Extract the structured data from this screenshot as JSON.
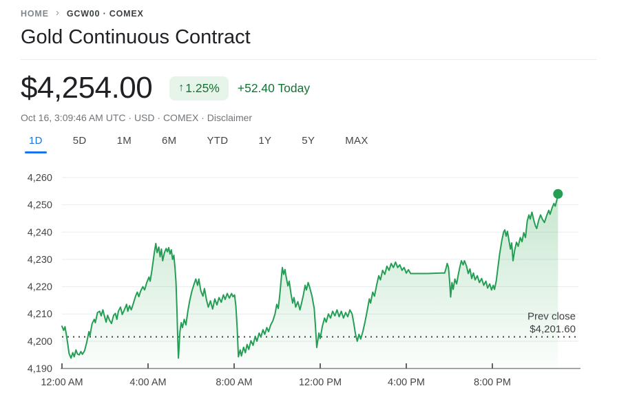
{
  "breadcrumb": {
    "home": "HOME",
    "symbol": "GCW00 · COMEX"
  },
  "header": {
    "title": "Gold Continuous Contract"
  },
  "quote": {
    "price": "$4,254.00",
    "arrow": "↑",
    "change_percent": "1.25%",
    "change_amount": "+52.40 Today",
    "meta": "Oct 16, 3:09:46 AM UTC · USD · COMEX · ",
    "disclaimer": "Disclaimer",
    "positive_color": "#137333",
    "badge_bg": "#e6f4ea"
  },
  "tabs": [
    {
      "label": "1D",
      "selected": true
    },
    {
      "label": "5D",
      "selected": false
    },
    {
      "label": "1M",
      "selected": false
    },
    {
      "label": "6M",
      "selected": false
    },
    {
      "label": "YTD",
      "selected": false
    },
    {
      "label": "1Y",
      "selected": false
    },
    {
      "label": "5Y",
      "selected": false
    },
    {
      "label": "MAX",
      "selected": false
    }
  ],
  "chart_data": {
    "type": "area",
    "title": "",
    "xlabel": "",
    "ylabel": "",
    "xlim_hours": [
      0,
      24
    ],
    "ylim": [
      4190,
      4260
    ],
    "grid": true,
    "line_color": "#249e55",
    "fill_top": "rgba(52,168,83,0.30)",
    "fill_bottom": "rgba(52,168,83,0.02)",
    "grid_color": "#e9ebee",
    "axis_color": "#80868b",
    "tick_color": "#5f6368",
    "dotted_color": "#3c4043",
    "y_ticks": [
      {
        "value": 4190,
        "label": "4,190"
      },
      {
        "value": 4200,
        "label": "4,200"
      },
      {
        "value": 4210,
        "label": "4,210"
      },
      {
        "value": 4220,
        "label": "4,220"
      },
      {
        "value": 4230,
        "label": "4,230"
      },
      {
        "value": 4240,
        "label": "4,240"
      },
      {
        "value": 4250,
        "label": "4,250"
      },
      {
        "value": 4260,
        "label": "4,260"
      }
    ],
    "x_ticks": [
      {
        "hour": 0,
        "label": "12:00 AM"
      },
      {
        "hour": 4,
        "label": "4:00 AM"
      },
      {
        "hour": 8,
        "label": "8:00 AM"
      },
      {
        "hour": 12,
        "label": "12:00 PM"
      },
      {
        "hour": 16,
        "label": "4:00 PM"
      },
      {
        "hour": 20,
        "label": "8:00 PM"
      }
    ],
    "prev_close": {
      "label": "Prev close",
      "display": "$4,201.60",
      "value": 4201.6
    },
    "last_point": {
      "hour": 23.05,
      "value": 4254
    },
    "points": [
      [
        0,
        4205.5
      ],
      [
        0.08,
        4204
      ],
      [
        0.14,
        4205.3
      ],
      [
        0.2,
        4202.5
      ],
      [
        0.27,
        4199
      ],
      [
        0.33,
        4195.5
      ],
      [
        0.42,
        4193.8
      ],
      [
        0.5,
        4195.8
      ],
      [
        0.57,
        4194.3
      ],
      [
        0.65,
        4196.8
      ],
      [
        0.72,
        4195.3
      ],
      [
        0.8,
        4195
      ],
      [
        0.88,
        4196.2
      ],
      [
        0.95,
        4195.2
      ],
      [
        1.05,
        4196.5
      ],
      [
        1.15,
        4199.5
      ],
      [
        1.25,
        4203.5
      ],
      [
        1.3,
        4202
      ],
      [
        1.4,
        4206.5
      ],
      [
        1.5,
        4208
      ],
      [
        1.55,
        4206.8
      ],
      [
        1.65,
        4210.5
      ],
      [
        1.75,
        4211
      ],
      [
        1.82,
        4209.3
      ],
      [
        1.9,
        4211.5
      ],
      [
        1.98,
        4209
      ],
      [
        2.05,
        4207
      ],
      [
        2.12,
        4209.5
      ],
      [
        2.2,
        4207.8
      ],
      [
        2.3,
        4206.5
      ],
      [
        2.4,
        4209.5
      ],
      [
        2.48,
        4210.2
      ],
      [
        2.55,
        4208
      ],
      [
        2.62,
        4211
      ],
      [
        2.72,
        4212.5
      ],
      [
        2.8,
        4209.8
      ],
      [
        2.9,
        4211.5
      ],
      [
        3,
        4213.5
      ],
      [
        3.06,
        4211
      ],
      [
        3.14,
        4213
      ],
      [
        3.22,
        4211.5
      ],
      [
        3.32,
        4214
      ],
      [
        3.42,
        4216.5
      ],
      [
        3.5,
        4218
      ],
      [
        3.57,
        4216.3
      ],
      [
        3.66,
        4218.5
      ],
      [
        3.76,
        4220
      ],
      [
        3.84,
        4218.8
      ],
      [
        3.94,
        4221.5
      ],
      [
        4.04,
        4223.5
      ],
      [
        4.1,
        4222
      ],
      [
        4.18,
        4226
      ],
      [
        4.24,
        4229.5
      ],
      [
        4.3,
        4233
      ],
      [
        4.36,
        4235.8
      ],
      [
        4.42,
        4232.5
      ],
      [
        4.5,
        4234.5
      ],
      [
        4.56,
        4231
      ],
      [
        4.62,
        4233.8
      ],
      [
        4.68,
        4229.5
      ],
      [
        4.76,
        4232.5
      ],
      [
        4.84,
        4234
      ],
      [
        4.9,
        4232.8
      ],
      [
        4.96,
        4234.3
      ],
      [
        5.02,
        4232
      ],
      [
        5.08,
        4233.5
      ],
      [
        5.14,
        4230
      ],
      [
        5.2,
        4231.5
      ],
      [
        5.26,
        4226
      ],
      [
        5.3,
        4221.5
      ],
      [
        5.34,
        4212
      ],
      [
        5.38,
        4201
      ],
      [
        5.41,
        4193.8
      ],
      [
        5.48,
        4203.5
      ],
      [
        5.54,
        4206.8
      ],
      [
        5.6,
        4205
      ],
      [
        5.68,
        4208
      ],
      [
        5.76,
        4206
      ],
      [
        5.86,
        4211.5
      ],
      [
        5.94,
        4215
      ],
      [
        6.04,
        4218.5
      ],
      [
        6.14,
        4221
      ],
      [
        6.22,
        4222.8
      ],
      [
        6.3,
        4220.5
      ],
      [
        6.36,
        4222.8
      ],
      [
        6.45,
        4218.5
      ],
      [
        6.55,
        4216.5
      ],
      [
        6.62,
        4219.3
      ],
      [
        6.72,
        4215
      ],
      [
        6.8,
        4212.5
      ],
      [
        6.9,
        4214.8
      ],
      [
        7,
        4211.8
      ],
      [
        7.1,
        4215.5
      ],
      [
        7.2,
        4213.3
      ],
      [
        7.3,
        4216
      ],
      [
        7.4,
        4214.3
      ],
      [
        7.5,
        4217
      ],
      [
        7.58,
        4215.3
      ],
      [
        7.68,
        4217.5
      ],
      [
        7.78,
        4215.8
      ],
      [
        7.88,
        4217.5
      ],
      [
        7.95,
        4216.3
      ],
      [
        8.02,
        4217
      ],
      [
        8.08,
        4213
      ],
      [
        8.14,
        4205
      ],
      [
        8.2,
        4194.3
      ],
      [
        8.28,
        4196.8
      ],
      [
        8.34,
        4194.6
      ],
      [
        8.44,
        4197.8
      ],
      [
        8.52,
        4195.8
      ],
      [
        8.6,
        4198.8
      ],
      [
        8.68,
        4197
      ],
      [
        8.78,
        4200.2
      ],
      [
        8.88,
        4198.5
      ],
      [
        8.98,
        4201.8
      ],
      [
        9.06,
        4200
      ],
      [
        9.16,
        4203
      ],
      [
        9.24,
        4201.5
      ],
      [
        9.34,
        4204.2
      ],
      [
        9.42,
        4202.5
      ],
      [
        9.52,
        4205
      ],
      [
        9.6,
        4203.5
      ],
      [
        9.7,
        4206
      ],
      [
        9.8,
        4207.5
      ],
      [
        9.9,
        4210
      ],
      [
        9.98,
        4213.5
      ],
      [
        10.05,
        4212
      ],
      [
        10.12,
        4217
      ],
      [
        10.18,
        4222
      ],
      [
        10.24,
        4227
      ],
      [
        10.3,
        4224.5
      ],
      [
        10.36,
        4226.3
      ],
      [
        10.42,
        4223.5
      ],
      [
        10.5,
        4220.3
      ],
      [
        10.56,
        4222
      ],
      [
        10.64,
        4217.5
      ],
      [
        10.72,
        4214
      ],
      [
        10.78,
        4216
      ],
      [
        10.86,
        4212.5
      ],
      [
        10.96,
        4214.5
      ],
      [
        11.06,
        4211.5
      ],
      [
        11.12,
        4213.5
      ],
      [
        11.22,
        4217
      ],
      [
        11.3,
        4220.5
      ],
      [
        11.36,
        4218.8
      ],
      [
        11.44,
        4221.5
      ],
      [
        11.52,
        4219.5
      ],
      [
        11.62,
        4216.5
      ],
      [
        11.72,
        4212
      ],
      [
        11.78,
        4205.5
      ],
      [
        11.84,
        4197.7
      ],
      [
        11.94,
        4203
      ],
      [
        12,
        4201
      ],
      [
        12.1,
        4205.5
      ],
      [
        12.2,
        4208.5
      ],
      [
        12.28,
        4207
      ],
      [
        12.38,
        4210
      ],
      [
        12.48,
        4208.5
      ],
      [
        12.58,
        4211
      ],
      [
        12.68,
        4209.3
      ],
      [
        12.78,
        4211.5
      ],
      [
        12.88,
        4209
      ],
      [
        12.98,
        4211
      ],
      [
        13.08,
        4208.5
      ],
      [
        13.18,
        4210.5
      ],
      [
        13.28,
        4209
      ],
      [
        13.38,
        4211.5
      ],
      [
        13.48,
        4210
      ],
      [
        13.56,
        4206.5
      ],
      [
        13.64,
        4202.5
      ],
      [
        13.72,
        4200
      ],
      [
        13.8,
        4202.5
      ],
      [
        13.88,
        4200.8
      ],
      [
        13.98,
        4203.5
      ],
      [
        14.08,
        4207
      ],
      [
        14.18,
        4211
      ],
      [
        14.28,
        4215.5
      ],
      [
        14.34,
        4214
      ],
      [
        14.44,
        4218
      ],
      [
        14.52,
        4216.5
      ],
      [
        14.62,
        4220.5
      ],
      [
        14.72,
        4224
      ],
      [
        14.8,
        4222.5
      ],
      [
        14.9,
        4226
      ],
      [
        15,
        4224.5
      ],
      [
        15.1,
        4227.5
      ],
      [
        15.2,
        4226
      ],
      [
        15.3,
        4228.5
      ],
      [
        15.4,
        4227
      ],
      [
        15.5,
        4229
      ],
      [
        15.6,
        4227
      ],
      [
        15.7,
        4228
      ],
      [
        15.8,
        4226
      ],
      [
        15.9,
        4227
      ],
      [
        16,
        4225
      ],
      [
        16.1,
        4226.2
      ],
      [
        16.2,
        4224.8
      ],
      [
        16.4,
        4224.8
      ],
      [
        16.7,
        4224.8
      ],
      [
        17,
        4224.8
      ],
      [
        17.3,
        4224.9
      ],
      [
        17.6,
        4225
      ],
      [
        17.78,
        4225
      ],
      [
        17.84,
        4226.5
      ],
      [
        17.9,
        4228.5
      ],
      [
        17.96,
        4227
      ],
      [
        18.02,
        4221.5
      ],
      [
        18.06,
        4216.2
      ],
      [
        18.12,
        4221.5
      ],
      [
        18.18,
        4219
      ],
      [
        18.26,
        4222.8
      ],
      [
        18.34,
        4221
      ],
      [
        18.42,
        4224.5
      ],
      [
        18.5,
        4227.5
      ],
      [
        18.56,
        4229.5
      ],
      [
        18.64,
        4228
      ],
      [
        18.7,
        4229.5
      ],
      [
        18.8,
        4227.5
      ],
      [
        18.88,
        4224.8
      ],
      [
        18.96,
        4226.5
      ],
      [
        19.04,
        4223
      ],
      [
        19.12,
        4225
      ],
      [
        19.2,
        4222.5
      ],
      [
        19.3,
        4224
      ],
      [
        19.4,
        4221.5
      ],
      [
        19.5,
        4223
      ],
      [
        19.6,
        4220.5
      ],
      [
        19.7,
        4222
      ],
      [
        19.78,
        4219.5
      ],
      [
        19.88,
        4221
      ],
      [
        19.96,
        4218.8
      ],
      [
        20.04,
        4220.5
      ],
      [
        20.1,
        4219
      ],
      [
        20.18,
        4222
      ],
      [
        20.26,
        4227
      ],
      [
        20.34,
        4232
      ],
      [
        20.44,
        4237
      ],
      [
        20.52,
        4240
      ],
      [
        20.58,
        4240.8
      ],
      [
        20.64,
        4238.5
      ],
      [
        20.7,
        4240.3
      ],
      [
        20.78,
        4236.5
      ],
      [
        20.84,
        4233.8
      ],
      [
        20.9,
        4236
      ],
      [
        20.96,
        4229.5
      ],
      [
        21.04,
        4233.5
      ],
      [
        21.12,
        4236.3
      ],
      [
        21.2,
        4234.8
      ],
      [
        21.3,
        4238
      ],
      [
        21.38,
        4236.5
      ],
      [
        21.46,
        4239.8
      ],
      [
        21.54,
        4238
      ],
      [
        21.62,
        4244
      ],
      [
        21.7,
        4246.3
      ],
      [
        21.76,
        4244.8
      ],
      [
        21.84,
        4247.3
      ],
      [
        21.92,
        4244.5
      ],
      [
        22,
        4242.3
      ],
      [
        22.06,
        4241.3
      ],
      [
        22.16,
        4244.5
      ],
      [
        22.24,
        4246.3
      ],
      [
        22.32,
        4244.8
      ],
      [
        22.42,
        4243.5
      ],
      [
        22.52,
        4246
      ],
      [
        22.62,
        4248
      ],
      [
        22.68,
        4246.5
      ],
      [
        22.78,
        4249
      ],
      [
        22.86,
        4250.5
      ],
      [
        22.92,
        4249.5
      ],
      [
        23,
        4252
      ],
      [
        23.05,
        4254
      ]
    ]
  }
}
